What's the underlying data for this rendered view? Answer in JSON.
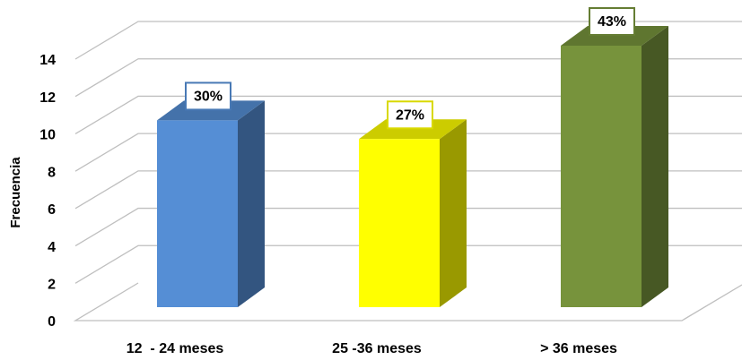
{
  "chart_data": {
    "type": "bar3d",
    "y_label": "Frecuencia",
    "categories": [
      "12  - 24 meses",
      "25 -36 meses",
      "> 36 meses"
    ],
    "values": [
      10,
      9,
      14
    ],
    "percent_labels": [
      "30%",
      "27%",
      "43%"
    ],
    "colors": [
      "#558ed5",
      "#ffff00",
      "#77933c"
    ],
    "ylim": [
      0,
      14
    ],
    "yticks": [
      0,
      2,
      4,
      6,
      8,
      10,
      12,
      14
    ],
    "grid": true
  }
}
